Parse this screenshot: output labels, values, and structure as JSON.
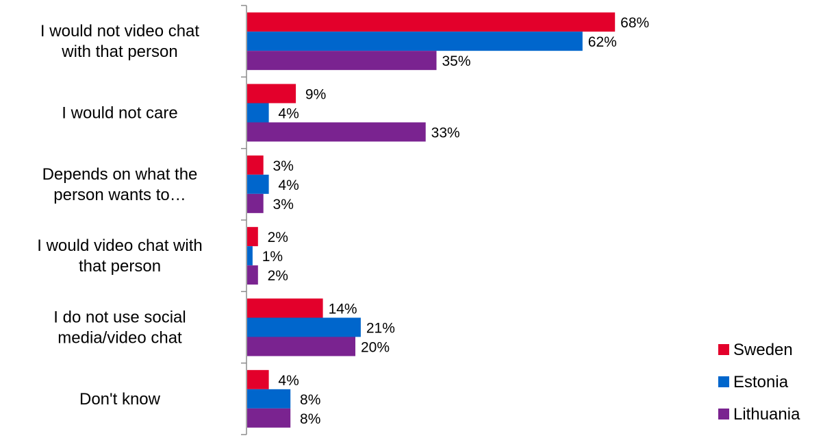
{
  "chart_data": {
    "type": "bar",
    "orientation": "horizontal",
    "categories": [
      [
        "I would not video chat",
        "with that person"
      ],
      [
        "I would not care"
      ],
      [
        "Depends on what the",
        "person wants to…"
      ],
      [
        "I would video chat with",
        "that person"
      ],
      [
        "I do not use social",
        "media/video chat"
      ],
      [
        "Don't know"
      ]
    ],
    "series": [
      {
        "name": "Sweden",
        "color": "#E3002B",
        "values": [
          68,
          9,
          3,
          2,
          14,
          4
        ]
      },
      {
        "name": "Estonia",
        "color": "#0066CC",
        "values": [
          62,
          4,
          4,
          1,
          21,
          8
        ]
      },
      {
        "name": "Lithuania",
        "color": "#7A2390",
        "values": [
          35,
          33,
          3,
          2,
          20,
          8
        ]
      }
    ],
    "value_suffix": "%",
    "xlim": [
      0,
      100
    ],
    "grid": false,
    "legend": "bottom-right"
  }
}
